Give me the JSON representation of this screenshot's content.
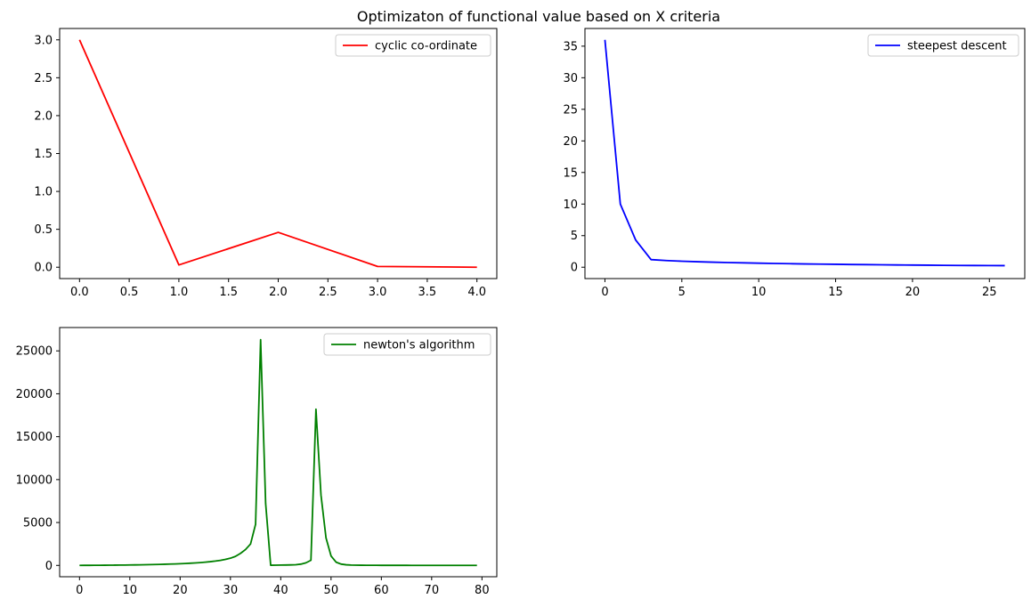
{
  "figure": {
    "title": "Optimizaton of functional value based on X criteria"
  },
  "chart_data": [
    {
      "type": "line",
      "title": "",
      "xlabel": "",
      "ylabel": "",
      "xlim": [
        -0.2,
        4.2
      ],
      "ylim": [
        -0.15,
        3.15
      ],
      "xticks": [
        0,
        0.5,
        1,
        1.5,
        2,
        2.5,
        3,
        3.5,
        4
      ],
      "xtick_labels": [
        "0.0",
        "0.5",
        "1.0",
        "1.5",
        "2.0",
        "2.5",
        "3.0",
        "3.5",
        "4.0"
      ],
      "yticks": [
        0,
        0.5,
        1,
        1.5,
        2,
        2.5,
        3
      ],
      "ytick_labels": [
        "0.0",
        "0.5",
        "1.0",
        "1.5",
        "2.0",
        "2.5",
        "3.0"
      ],
      "grid": false,
      "legend_position": "top-right",
      "series": [
        {
          "name": "cyclic co-ordinate",
          "color": "#ff0000",
          "x": [
            0,
            1,
            2,
            3,
            4
          ],
          "y": [
            3.0,
            0.03,
            0.46,
            0.01,
            0.0
          ]
        }
      ]
    },
    {
      "type": "line",
      "title": "",
      "xlabel": "",
      "ylabel": "",
      "xlim": [
        -1.3,
        27.3
      ],
      "ylim": [
        -1.8,
        37.8
      ],
      "xticks": [
        0,
        5,
        10,
        15,
        20,
        25
      ],
      "xtick_labels": [
        "0",
        "5",
        "10",
        "15",
        "20",
        "25"
      ],
      "yticks": [
        0,
        5,
        10,
        15,
        20,
        25,
        30,
        35
      ],
      "ytick_labels": [
        "0",
        "5",
        "10",
        "15",
        "20",
        "25",
        "30",
        "35"
      ],
      "grid": false,
      "legend_position": "top-right",
      "series": [
        {
          "name": "steepest descent",
          "color": "#0000ff",
          "x": [
            0,
            1,
            2,
            3,
            4,
            5,
            6,
            7,
            8,
            9,
            10,
            11,
            12,
            13,
            14,
            15,
            16,
            17,
            18,
            19,
            20,
            21,
            22,
            23,
            24,
            25,
            26
          ],
          "y": [
            36.0,
            10.0,
            4.3,
            1.2,
            1.05,
            0.95,
            0.87,
            0.8,
            0.74,
            0.69,
            0.64,
            0.6,
            0.56,
            0.52,
            0.49,
            0.46,
            0.43,
            0.41,
            0.38,
            0.36,
            0.34,
            0.32,
            0.3,
            0.28,
            0.27,
            0.26,
            0.25
          ]
        }
      ]
    },
    {
      "type": "line",
      "title": "",
      "xlabel": "",
      "ylabel": "",
      "xlim": [
        -3.95,
        82.95
      ],
      "ylim": [
        -1320,
        27720
      ],
      "xticks": [
        0,
        10,
        20,
        30,
        40,
        50,
        60,
        70,
        80
      ],
      "xtick_labels": [
        "0",
        "10",
        "20",
        "30",
        "40",
        "50",
        "60",
        "70",
        "80"
      ],
      "yticks": [
        0,
        5000,
        10000,
        15000,
        20000,
        25000
      ],
      "ytick_labels": [
        "0",
        "5000",
        "10000",
        "15000",
        "20000",
        "25000"
      ],
      "grid": false,
      "legend_position": "top-right",
      "series": [
        {
          "name": "newton's algorithm",
          "color": "#008000",
          "x": [
            0,
            1,
            2,
            3,
            4,
            5,
            6,
            7,
            8,
            9,
            10,
            11,
            12,
            13,
            14,
            15,
            16,
            17,
            18,
            19,
            20,
            21,
            22,
            23,
            24,
            25,
            26,
            27,
            28,
            29,
            30,
            31,
            32,
            33,
            34,
            35,
            36,
            37,
            38,
            39,
            40,
            41,
            42,
            43,
            44,
            45,
            46,
            47,
            48,
            49,
            50,
            51,
            52,
            53,
            54,
            55,
            56,
            57,
            58,
            59,
            60,
            61,
            62,
            63,
            64,
            65,
            66,
            67,
            68,
            69,
            70,
            71,
            72,
            73,
            74,
            75,
            76,
            77,
            78,
            79
          ],
          "y": [
            5,
            8,
            11,
            14,
            18,
            22,
            27,
            32,
            38,
            45,
            52,
            60,
            70,
            80,
            92,
            105,
            120,
            136,
            155,
            175,
            198,
            225,
            255,
            290,
            330,
            378,
            435,
            505,
            590,
            700,
            840,
            1050,
            1400,
            1850,
            2500,
            4800,
            26300,
            7200,
            20,
            30,
            40,
            50,
            60,
            80,
            150,
            300,
            600,
            18200,
            8200,
            3200,
            1100,
            380,
            150,
            75,
            45,
            30,
            22,
            17,
            14,
            12,
            10,
            9,
            8,
            7,
            6,
            6,
            5,
            5,
            4,
            4,
            4,
            3,
            3,
            3,
            3,
            2,
            2,
            2,
            2,
            2
          ]
        }
      ]
    }
  ]
}
